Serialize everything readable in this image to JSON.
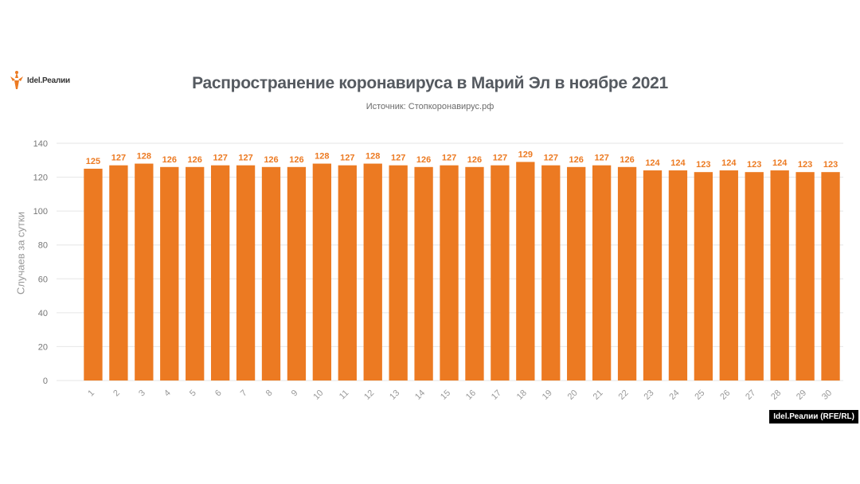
{
  "brand": {
    "logo_text": "Idel.Реалии",
    "credit": "Idel.Реалии (RFE/RL)",
    "accent": "#ec7a22"
  },
  "chart_data": {
    "type": "bar",
    "title": "Распространение коронавируса в Марий Эл в ноябре 2021",
    "subtitle": "Источник: Стопкоронавирус.рф",
    "xlabel": "",
    "ylabel": "Случаев за сутки",
    "ylim": [
      0,
      140
    ],
    "yticks": [
      0,
      20,
      40,
      60,
      80,
      100,
      120,
      140
    ],
    "grid": true,
    "categories": [
      "1",
      "2",
      "3",
      "4",
      "5",
      "6",
      "7",
      "8",
      "9",
      "10",
      "11",
      "12",
      "13",
      "14",
      "15",
      "16",
      "17",
      "18",
      "19",
      "20",
      "21",
      "22",
      "23",
      "24",
      "25",
      "26",
      "27",
      "28",
      "29",
      "30"
    ],
    "values": [
      125,
      127,
      128,
      126,
      126,
      127,
      127,
      126,
      126,
      128,
      127,
      128,
      127,
      126,
      127,
      126,
      127,
      129,
      127,
      126,
      127,
      126,
      124,
      124,
      123,
      124,
      123,
      124,
      123,
      123
    ],
    "bar_color": "#ec7a22",
    "data_labels": true
  }
}
